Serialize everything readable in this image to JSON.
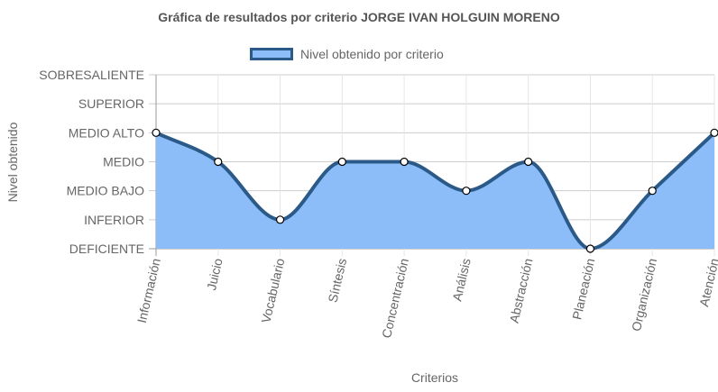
{
  "title": "Gráfica de resultados por criterio JORGE IVAN HOLGUIN MORENO",
  "chart_data": {
    "type": "area",
    "title": "Gráfica de resultados por criterio JORGE IVAN HOLGUIN MORENO",
    "xlabel": "Criterios",
    "ylabel": "Nivel obtenido",
    "categories": [
      "Información",
      "Juicio",
      "Vocabulario",
      "Síntesis",
      "Concentración",
      "Análisis",
      "Abstracción",
      "Planeación",
      "Organización",
      "Atención"
    ],
    "y_levels": [
      "DEFICIENTE",
      "INFERIOR",
      "MEDIO BAJO",
      "MEDIO",
      "MEDIO ALTO",
      "SUPERIOR",
      "SOBRESALIENTE"
    ],
    "series": [
      {
        "name": "Nivel obtenido por criterio",
        "values": [
          "MEDIO ALTO",
          "MEDIO",
          "INFERIOR",
          "MEDIO",
          "MEDIO",
          "MEDIO BAJO",
          "MEDIO",
          "DEFICIENTE",
          "MEDIO BAJO",
          "MEDIO ALTO"
        ],
        "fill_color": "#8cbdf9",
        "line_color": "#2b5a89"
      }
    ],
    "legend": "top",
    "grid": true
  }
}
